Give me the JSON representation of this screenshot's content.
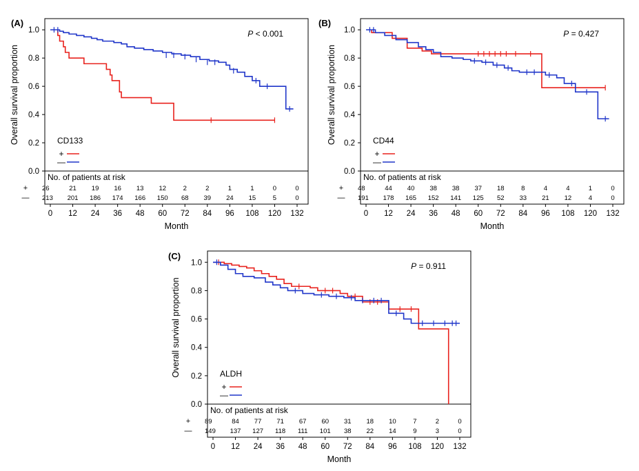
{
  "figure": {
    "colors": {
      "positive": "#e8211c",
      "negative": "#1f35c9",
      "axis": "#000000"
    }
  },
  "chart_data": [
    {
      "type": "line",
      "panel": "(A)",
      "marker": "CD133",
      "p_value": "< 0.001",
      "xlabel": "Month",
      "ylabel": "Overall survival proportion",
      "xlim": [
        0,
        132
      ],
      "ylim": [
        0,
        1.05
      ],
      "xticks": [
        "0",
        "12",
        "24",
        "36",
        "48",
        "60",
        "72",
        "84",
        "96",
        "108",
        "120",
        "132"
      ],
      "yticks": [
        "0.0",
        "0.2",
        "0.4",
        "0.6",
        "0.8",
        "1.0"
      ],
      "legend": {
        "title": "CD133",
        "entries": [
          "+",
          "—"
        ],
        "placement": "bottom-left"
      },
      "risk_table": {
        "title": "No. of patients at risk",
        "rows": [
          {
            "label": "+",
            "values": [
              "26",
              "21",
              "19",
              "16",
              "13",
              "12",
              "2",
              "2",
              "1",
              "1",
              "0",
              "0"
            ]
          },
          {
            "label": "—",
            "values": [
              "213",
              "201",
              "186",
              "174",
              "166",
              "150",
              "68",
              "39",
              "24",
              "15",
              "5",
              "0"
            ]
          }
        ]
      },
      "series": [
        {
          "group": "+",
          "color": "#e8211c",
          "steps": [
            [
              0,
              1.0
            ],
            [
              4,
              0.96
            ],
            [
              5,
              0.92
            ],
            [
              7,
              0.88
            ],
            [
              8,
              0.84
            ],
            [
              10,
              0.8
            ],
            [
              18,
              0.76
            ],
            [
              30,
              0.72
            ],
            [
              32,
              0.68
            ],
            [
              33,
              0.64
            ],
            [
              37,
              0.56
            ],
            [
              38,
              0.52
            ],
            [
              54,
              0.48
            ],
            [
              66,
              0.36
            ],
            [
              120,
              0.36
            ]
          ],
          "censored": [
            [
              86,
              0.36
            ],
            [
              120,
              0.36
            ]
          ]
        },
        {
          "group": "—",
          "color": "#1f35c9",
          "steps": [
            [
              0,
              1.0
            ],
            [
              5,
              0.99
            ],
            [
              7,
              0.98
            ],
            [
              10,
              0.97
            ],
            [
              14,
              0.96
            ],
            [
              18,
              0.95
            ],
            [
              22,
              0.94
            ],
            [
              25,
              0.93
            ],
            [
              28,
              0.92
            ],
            [
              34,
              0.91
            ],
            [
              38,
              0.9
            ],
            [
              41,
              0.88
            ],
            [
              45,
              0.87
            ],
            [
              50,
              0.86
            ],
            [
              55,
              0.85
            ],
            [
              60,
              0.84
            ],
            [
              65,
              0.83
            ],
            [
              70,
              0.82
            ],
            [
              75,
              0.81
            ],
            [
              80,
              0.79
            ],
            [
              85,
              0.78
            ],
            [
              90,
              0.77
            ],
            [
              94,
              0.75
            ],
            [
              96,
              0.72
            ],
            [
              100,
              0.7
            ],
            [
              104,
              0.67
            ],
            [
              108,
              0.64
            ],
            [
              112,
              0.6
            ],
            [
              120,
              0.6
            ],
            [
              126,
              0.44
            ],
            [
              130,
              0.44
            ]
          ],
          "censored": [
            [
              2,
              1.0
            ],
            [
              4,
              1.0
            ],
            [
              62,
              0.82
            ],
            [
              66,
              0.82
            ],
            [
              72,
              0.81
            ],
            [
              78,
              0.79
            ],
            [
              84,
              0.77
            ],
            [
              88,
              0.77
            ],
            [
              98,
              0.71
            ],
            [
              110,
              0.64
            ],
            [
              116,
              0.6
            ],
            [
              128,
              0.44
            ]
          ]
        }
      ]
    },
    {
      "type": "line",
      "panel": "(B)",
      "marker": "CD44",
      "p_value": "= 0.427",
      "xlabel": "Month",
      "ylabel": "Overall survival proportion",
      "xlim": [
        0,
        132
      ],
      "ylim": [
        0,
        1.05
      ],
      "xticks": [
        "0",
        "12",
        "24",
        "36",
        "48",
        "60",
        "72",
        "84",
        "96",
        "108",
        "120",
        "132"
      ],
      "yticks": [
        "0.0",
        "0.2",
        "0.4",
        "0.6",
        "0.8",
        "1.0"
      ],
      "legend": {
        "title": "CD44",
        "entries": [
          "+",
          "—"
        ],
        "placement": "bottom-left"
      },
      "risk_table": {
        "title": "No. of patients at risk",
        "rows": [
          {
            "label": "+",
            "values": [
              "48",
              "44",
              "40",
              "38",
              "38",
              "37",
              "18",
              "8",
              "4",
              "4",
              "1",
              "0"
            ]
          },
          {
            "label": "—",
            "values": [
              "191",
              "178",
              "165",
              "152",
              "141",
              "125",
              "52",
              "33",
              "21",
              "12",
              "4",
              "0"
            ]
          }
        ]
      },
      "series": [
        {
          "group": "+",
          "color": "#e8211c",
          "steps": [
            [
              0,
              1.0
            ],
            [
              3,
              0.98
            ],
            [
              14,
              0.94
            ],
            [
              22,
              0.87
            ],
            [
              30,
              0.85
            ],
            [
              35,
              0.83
            ],
            [
              94,
              0.59
            ],
            [
              128,
              0.59
            ]
          ],
          "censored": [
            [
              60,
              0.83
            ],
            [
              63,
              0.83
            ],
            [
              66,
              0.83
            ],
            [
              69,
              0.83
            ],
            [
              72,
              0.83
            ],
            [
              75,
              0.83
            ],
            [
              80,
              0.83
            ],
            [
              88,
              0.83
            ],
            [
              128,
              0.59
            ]
          ]
        },
        {
          "group": "—",
          "color": "#1f35c9",
          "steps": [
            [
              0,
              1.0
            ],
            [
              5,
              0.98
            ],
            [
              10,
              0.96
            ],
            [
              16,
              0.93
            ],
            [
              22,
              0.91
            ],
            [
              28,
              0.88
            ],
            [
              32,
              0.86
            ],
            [
              36,
              0.84
            ],
            [
              40,
              0.81
            ],
            [
              46,
              0.8
            ],
            [
              52,
              0.79
            ],
            [
              56,
              0.78
            ],
            [
              62,
              0.77
            ],
            [
              68,
              0.75
            ],
            [
              74,
              0.73
            ],
            [
              78,
              0.71
            ],
            [
              82,
              0.7
            ],
            [
              92,
              0.7
            ],
            [
              96,
              0.68
            ],
            [
              102,
              0.66
            ],
            [
              106,
              0.62
            ],
            [
              112,
              0.56
            ],
            [
              122,
              0.56
            ],
            [
              124,
              0.37
            ],
            [
              130,
              0.37
            ]
          ],
          "censored": [
            [
              2,
              1.0
            ],
            [
              4,
              1.0
            ],
            [
              58,
              0.78
            ],
            [
              64,
              0.77
            ],
            [
              70,
              0.75
            ],
            [
              76,
              0.73
            ],
            [
              86,
              0.7
            ],
            [
              90,
              0.7
            ],
            [
              98,
              0.68
            ],
            [
              110,
              0.62
            ],
            [
              118,
              0.56
            ],
            [
              128,
              0.37
            ]
          ]
        }
      ]
    },
    {
      "type": "line",
      "panel": "(C)",
      "marker": "ALDH",
      "p_value": "= 0.911",
      "xlabel": "Month",
      "ylabel": "Overall survival proportion",
      "xlim": [
        0,
        132
      ],
      "ylim": [
        0,
        1.05
      ],
      "xticks": [
        "0",
        "12",
        "24",
        "36",
        "48",
        "60",
        "72",
        "84",
        "96",
        "108",
        "120",
        "132"
      ],
      "yticks": [
        "0.0",
        "0.2",
        "0.4",
        "0.6",
        "0.8",
        "1.0"
      ],
      "legend": {
        "title": "ALDH",
        "entries": [
          "+",
          "—"
        ],
        "placement": "bottom-left"
      },
      "risk_table": {
        "title": "No. of patients at risk",
        "rows": [
          {
            "label": "+",
            "values": [
              "89",
              "84",
              "77",
              "71",
              "67",
              "60",
              "31",
              "18",
              "10",
              "7",
              "2",
              "0"
            ]
          },
          {
            "label": "—",
            "values": [
              "149",
              "137",
              "127",
              "118",
              "111",
              "101",
              "38",
              "22",
              "14",
              "9",
              "3",
              "0"
            ]
          }
        ]
      },
      "series": [
        {
          "group": "+",
          "color": "#e8211c",
          "steps": [
            [
              0,
              1.0
            ],
            [
              6,
              0.99
            ],
            [
              10,
              0.98
            ],
            [
              14,
              0.97
            ],
            [
              18,
              0.96
            ],
            [
              22,
              0.94
            ],
            [
              26,
              0.92
            ],
            [
              30,
              0.9
            ],
            [
              34,
              0.88
            ],
            [
              38,
              0.85
            ],
            [
              42,
              0.83
            ],
            [
              52,
              0.82
            ],
            [
              56,
              0.8
            ],
            [
              68,
              0.78
            ],
            [
              72,
              0.76
            ],
            [
              80,
              0.72
            ],
            [
              94,
              0.67
            ],
            [
              110,
              0.53
            ],
            [
              126,
              0.0
            ]
          ],
          "censored": [
            [
              3,
              1.0
            ],
            [
              46,
              0.83
            ],
            [
              60,
              0.8
            ],
            [
              64,
              0.8
            ],
            [
              76,
              0.76
            ],
            [
              84,
              0.72
            ],
            [
              88,
              0.72
            ],
            [
              100,
              0.67
            ],
            [
              106,
              0.67
            ]
          ]
        },
        {
          "group": "—",
          "color": "#1f35c9",
          "steps": [
            [
              0,
              1.0
            ],
            [
              4,
              0.98
            ],
            [
              8,
              0.95
            ],
            [
              12,
              0.92
            ],
            [
              16,
              0.9
            ],
            [
              22,
              0.89
            ],
            [
              28,
              0.86
            ],
            [
              32,
              0.84
            ],
            [
              36,
              0.82
            ],
            [
              40,
              0.8
            ],
            [
              48,
              0.78
            ],
            [
              54,
              0.77
            ],
            [
              62,
              0.76
            ],
            [
              70,
              0.75
            ],
            [
              76,
              0.73
            ],
            [
              84,
              0.73
            ],
            [
              94,
              0.64
            ],
            [
              102,
              0.6
            ],
            [
              106,
              0.57
            ],
            [
              132,
              0.57
            ]
          ],
          "censored": [
            [
              2,
              1.0
            ],
            [
              44,
              0.8
            ],
            [
              58,
              0.77
            ],
            [
              66,
              0.76
            ],
            [
              74,
              0.75
            ],
            [
              80,
              0.73
            ],
            [
              86,
              0.73
            ],
            [
              90,
              0.73
            ],
            [
              98,
              0.64
            ],
            [
              112,
              0.57
            ],
            [
              118,
              0.57
            ],
            [
              124,
              0.57
            ],
            [
              128,
              0.57
            ],
            [
              130,
              0.57
            ]
          ]
        }
      ]
    }
  ]
}
